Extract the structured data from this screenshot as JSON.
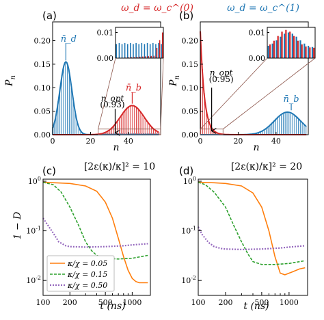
{
  "colors": {
    "red": "#d62728",
    "blue": "#1f77b4",
    "orange": "#ff7f0e",
    "green": "#2ca02c",
    "purple": "#9467bd",
    "gray": "#8c564b"
  },
  "header_left": "ω_d = ω_c^(0)",
  "header_right": "ω_d = ω_c^(1)",
  "chart_data": [
    {
      "id": "a",
      "type": "bar",
      "panel_label": "(a)",
      "xlabel": "n",
      "ylabel": "P_n",
      "xlim": [
        0,
        57
      ],
      "ylim": [
        0,
        0.24
      ],
      "xticks": [
        "0",
        "20",
        "40"
      ],
      "yticks": [
        "0.00",
        "0.05",
        "0.10",
        "0.15",
        "0.20"
      ],
      "blue_mean": 7,
      "red_mean": 42,
      "n_opt": 33,
      "n_opt_value": "(0.93)",
      "labels": {
        "nd": "n̄_d",
        "nb": "n̄_b",
        "nopt": "n_opt"
      },
      "inset": {
        "yticks": [
          "0.00",
          "0.01"
        ],
        "ylim": [
          0,
          0.012
        ],
        "range": [
          24,
          57
        ]
      },
      "legend": "none"
    },
    {
      "id": "b",
      "type": "bar",
      "panel_label": "(b)",
      "xlabel": "n",
      "ylabel": "P_n",
      "xlim": [
        0,
        57
      ],
      "ylim": [
        0,
        0.24
      ],
      "xticks": [
        "0",
        "20",
        "40"
      ],
      "yticks": [
        "0.00",
        "0.05",
        "0.10",
        "0.15",
        "0.20"
      ],
      "blue_mean": 46,
      "n_opt": 6,
      "n_opt_value": "(0.95)",
      "labels": {
        "nb": "n̄_b",
        "nopt": "n_opt"
      },
      "inset": {
        "yticks": [
          "0.00",
          "0.01"
        ],
        "ylim": [
          0,
          0.012
        ],
        "range": [
          0,
          12
        ]
      },
      "legend": "none"
    },
    {
      "id": "c",
      "type": "line",
      "panel_label": "(c)",
      "title": "[2ε(κ)/κ]² = 10",
      "xlabel": "t (ns)",
      "ylabel": "1 − D",
      "xscale": "log",
      "yscale": "log",
      "xlim": [
        100,
        1600
      ],
      "ylim": [
        0.005,
        1.1
      ],
      "xticks": [
        "100",
        "200",
        "500",
        "1000"
      ],
      "yticks": [
        "10^0",
        "10^-1",
        "10^-2"
      ],
      "legend": "bottom-left",
      "series": [
        {
          "name": "κ/χ = 0.05",
          "x": [
            100,
            150,
            200,
            300,
            400,
            500,
            600,
            700,
            800,
            900,
            1000,
            1100,
            1200,
            1300,
            1400,
            1500
          ],
          "y": [
            0.95,
            0.92,
            0.9,
            0.8,
            0.63,
            0.38,
            0.18,
            0.07,
            0.03,
            0.016,
            0.011,
            0.0095,
            0.009,
            0.009,
            0.009,
            0.009
          ]
        },
        {
          "name": "κ/χ = 0.15",
          "x": [
            100,
            130,
            160,
            200,
            250,
            300,
            350,
            400,
            500,
            700,
            1000,
            1500
          ],
          "y": [
            0.95,
            0.85,
            0.6,
            0.3,
            0.13,
            0.06,
            0.04,
            0.032,
            0.028,
            0.027,
            0.028,
            0.032
          ]
        },
        {
          "name": "κ/χ = 0.50",
          "x": [
            100,
            110,
            130,
            150,
            180,
            200,
            300,
            500,
            800,
            1000,
            1500
          ],
          "y": [
            0.18,
            0.14,
            0.09,
            0.06,
            0.05,
            0.048,
            0.047,
            0.048,
            0.05,
            0.052,
            0.055
          ]
        }
      ]
    },
    {
      "id": "d",
      "type": "line",
      "panel_label": "(d)",
      "title": "[2ε(κ)/κ]² = 20",
      "xlabel": "t (ns)",
      "ylabel": "",
      "xscale": "log",
      "yscale": "log",
      "xlim": [
        100,
        1600
      ],
      "ylim": [
        0.005,
        1.1
      ],
      "xticks": [
        "100",
        "200",
        "500",
        "1000"
      ],
      "yticks": [
        "10^0",
        "10^-1",
        "10^-2"
      ],
      "legend": "none",
      "series": [
        {
          "name": "κ/χ = 0.05",
          "x": [
            100,
            150,
            200,
            300,
            400,
            500,
            600,
            700,
            800,
            900,
            1000,
            1100,
            1300,
            1500
          ],
          "y": [
            0.95,
            0.93,
            0.9,
            0.8,
            0.58,
            0.3,
            0.1,
            0.03,
            0.014,
            0.013,
            0.014,
            0.015,
            0.017,
            0.018
          ]
        },
        {
          "name": "κ/χ = 0.15",
          "x": [
            100,
            120,
            150,
            200,
            250,
            300,
            350,
            400,
            500,
            700,
            1000,
            1500
          ],
          "y": [
            0.95,
            0.85,
            0.6,
            0.3,
            0.12,
            0.06,
            0.035,
            0.024,
            0.021,
            0.021,
            0.022,
            0.025
          ]
        },
        {
          "name": "κ/χ = 0.50",
          "x": [
            100,
            110,
            130,
            150,
            180,
            200,
            300,
            500,
            800,
            1000,
            1500
          ],
          "y": [
            0.12,
            0.085,
            0.058,
            0.048,
            0.044,
            0.043,
            0.042,
            0.043,
            0.045,
            0.047,
            0.05
          ]
        }
      ]
    }
  ]
}
